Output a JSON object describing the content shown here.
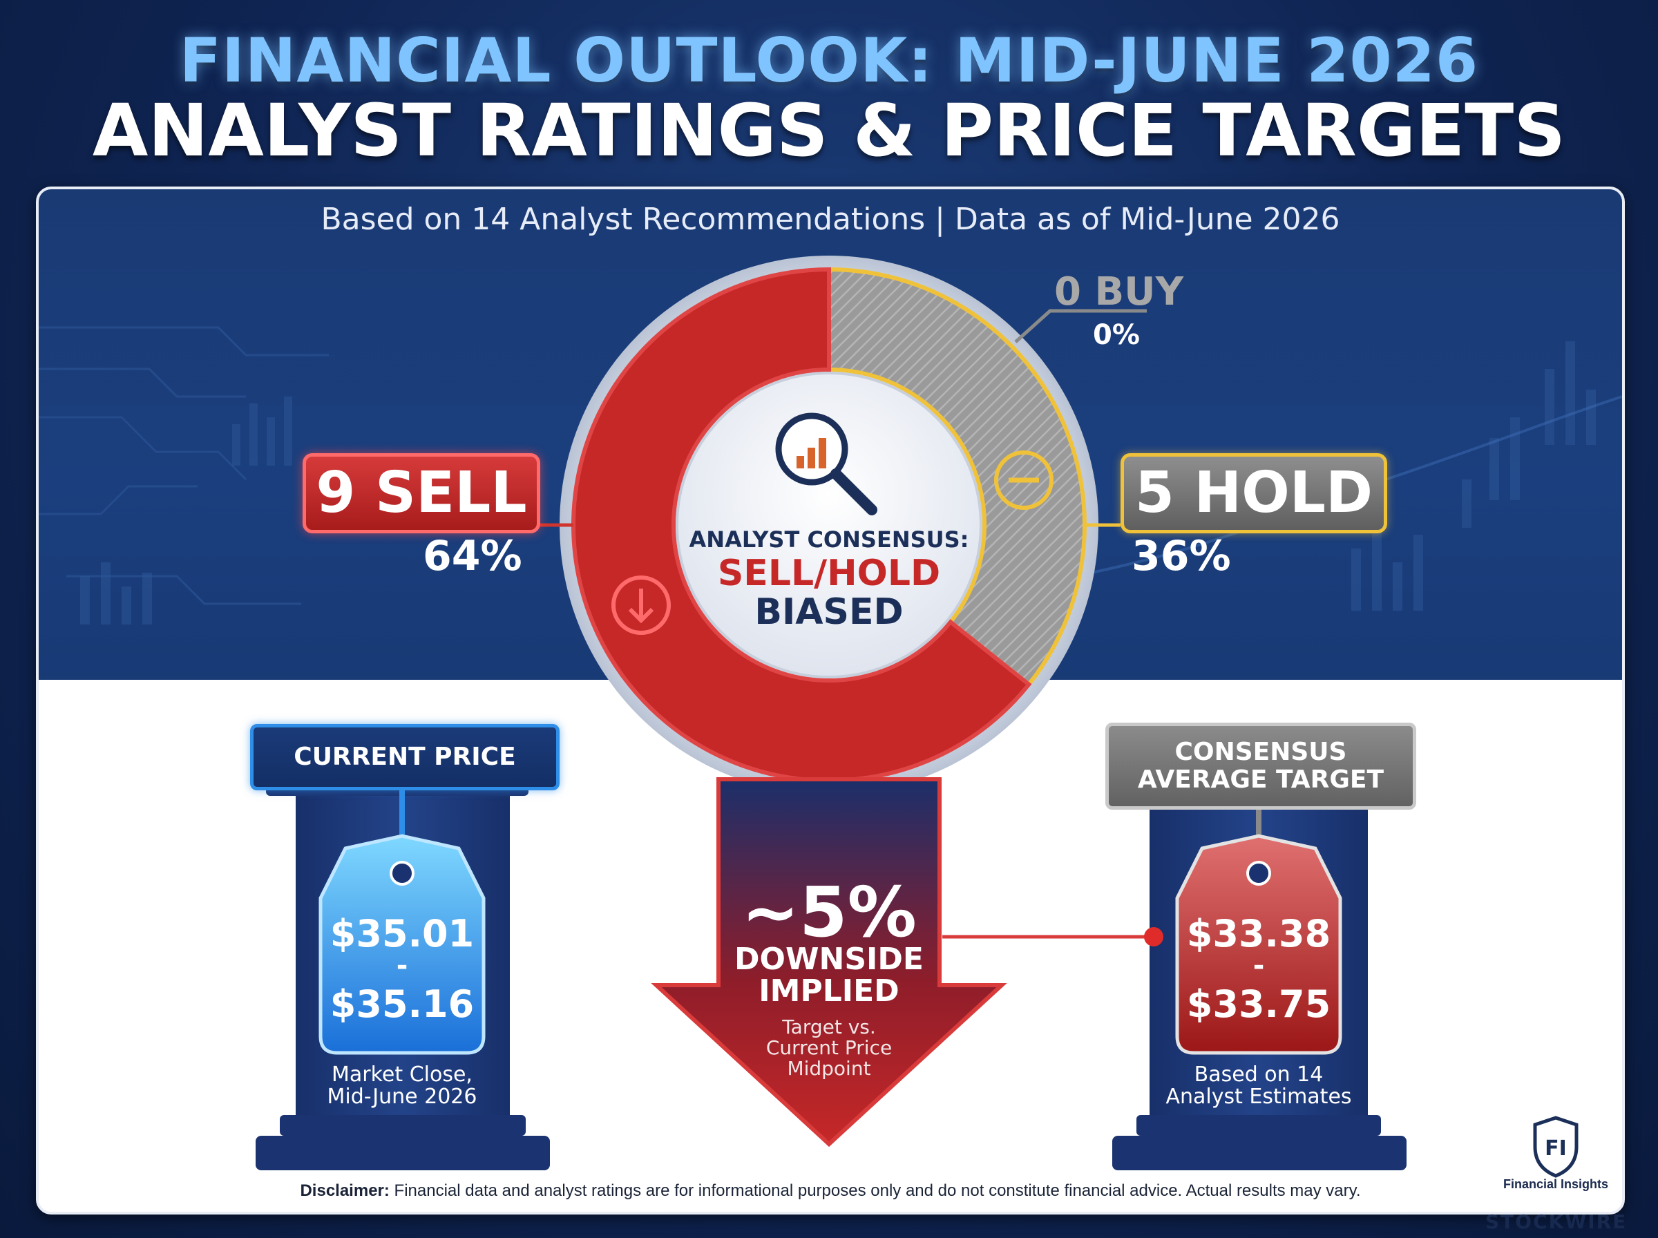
{
  "header": {
    "title": "FINANCIAL OUTLOOK: MID-JUNE 2026",
    "subtitle": "ANALYST RATINGS & PRICE TARGETS"
  },
  "panel": {
    "caption": "Based on 14 Analyst Recommendations | Data as of Mid-June 2026"
  },
  "chart_data": {
    "type": "pie",
    "title": "ANALYST RATINGS & PRICE TARGETS",
    "total_analysts": 14,
    "categories": [
      "SELL",
      "HOLD",
      "BUY"
    ],
    "values": [
      9,
      5,
      0
    ],
    "percentages": [
      64,
      36,
      0
    ],
    "colors": [
      "#c62828",
      "#8a8a8a",
      "#b8b8b8"
    ],
    "labels": {
      "sell": "9 SELL",
      "sell_pct": "64%",
      "hold": "5 HOLD",
      "hold_pct": "36%",
      "buy": "0 BUY",
      "buy_pct": "0%"
    },
    "center": {
      "line1": "ANALYST CONSENSUS:",
      "line2": "SELL/HOLD",
      "line3": "BIASED"
    }
  },
  "current_price": {
    "caption": "CURRENT PRICE",
    "low": "$35.01",
    "sep": "-",
    "high": "$35.16",
    "note_line1": "Market Close,",
    "note_line2": "Mid-June 2026",
    "color": "#2e8ee8"
  },
  "target": {
    "caption_line1": "CONSENSUS",
    "caption_line2": "AVERAGE TARGET",
    "low": "$33.38",
    "sep": "-",
    "high": "$33.75",
    "note_line1": "Based on 14",
    "note_line2": "Analyst Estimates",
    "color": "#b52424"
  },
  "downside": {
    "value": "~5%",
    "line1": "DOWNSIDE",
    "line2": "IMPLIED",
    "note_line1": "Target vs.",
    "note_line2": "Current Price",
    "note_line3": "Midpoint"
  },
  "footer": {
    "disclaimer_bold": "Disclaimer:",
    "disclaimer_text": " Financial data and analyst ratings are for informational purposes only and do not constitute financial advice. Actual results may vary.",
    "brand": "Financial Insights",
    "brand_mark": "FI",
    "corner_text": "STOCKWIRE"
  },
  "icons": {
    "center": "magnifier-chart-icon",
    "hold": "minus-circle-icon",
    "sell": "down-arrow-circle-icon",
    "brand": "shield-icon"
  }
}
